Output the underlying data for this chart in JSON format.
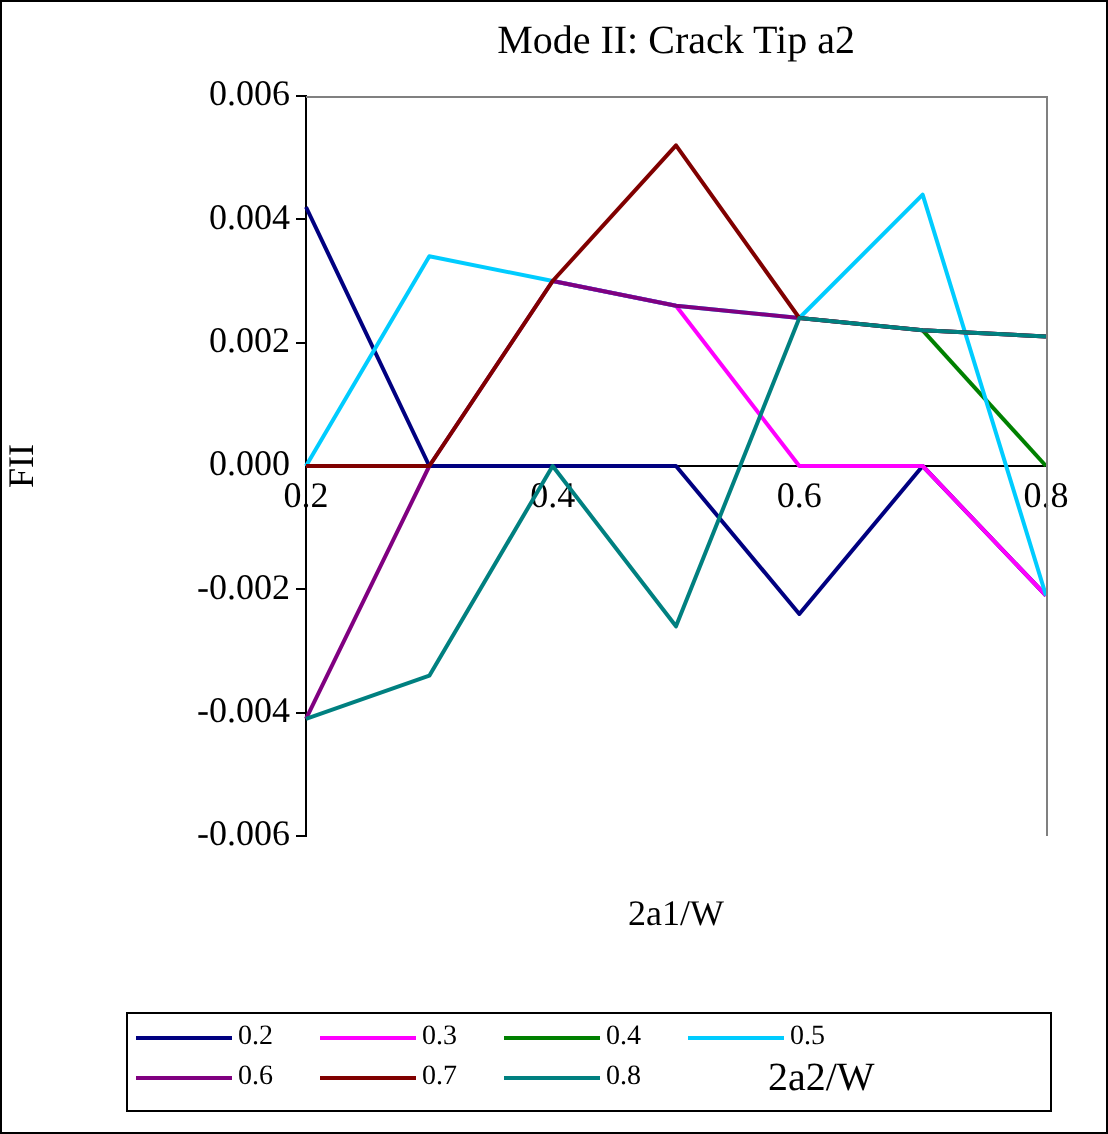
{
  "chart_data": {
    "type": "line",
    "title": "Mode II: Crack Tip a2",
    "xlabel": "2a1/W",
    "ylabel": "FII",
    "legend_title": "2a2/W",
    "x": [
      0.2,
      0.3,
      0.4,
      0.5,
      0.6,
      0.7,
      0.8
    ],
    "xlim": [
      0.2,
      0.8
    ],
    "xticks": [
      0.2,
      0.4,
      0.6,
      0.8
    ],
    "ylim": [
      -0.006,
      0.006
    ],
    "yticks": [
      {
        "value": -0.006,
        "label": "-0.006"
      },
      {
        "value": -0.004,
        "label": "-0.004"
      },
      {
        "value": -0.002,
        "label": "-0.002"
      },
      {
        "value": 0,
        "label": "0.000"
      },
      {
        "value": 0.002,
        "label": "0.002"
      },
      {
        "value": 0.004,
        "label": "0.004"
      },
      {
        "value": 0.006,
        "label": "0.006"
      }
    ],
    "grid": false,
    "legend": "bottom",
    "marker": "none",
    "line_style": "solid",
    "series": [
      {
        "name": "0.2",
        "color": "#000080",
        "values": [
          0.0042,
          0,
          0,
          0,
          -0.0024,
          0,
          -0.0021
        ]
      },
      {
        "name": "0.3",
        "color": "#ff00ff",
        "values": [
          null,
          null,
          0.003,
          0.0026,
          0,
          0,
          -0.0021
        ]
      },
      {
        "name": "0.4",
        "color": "#008000",
        "values": [
          null,
          null,
          null,
          null,
          null,
          0.0022,
          0
        ]
      },
      {
        "name": "0.5",
        "color": "#00ccff",
        "values": [
          0,
          0.0034,
          0.003,
          0.0026,
          0.0024,
          0.0044,
          -0.0021
        ]
      },
      {
        "name": "0.6",
        "color": "#800080",
        "values": [
          -0.0041,
          0,
          0.003,
          0.0026,
          0.0024,
          0.0022,
          0.0021
        ]
      },
      {
        "name": "0.7",
        "color": "#800000",
        "values": [
          0,
          0,
          0.003,
          0.0052,
          0.0024,
          0.0022,
          0.0021
        ]
      },
      {
        "name": "0.8",
        "color": "#008080",
        "values": [
          -0.0041,
          -0.0034,
          0,
          -0.0026,
          0.0024,
          0.0022,
          0.0021
        ]
      }
    ]
  }
}
